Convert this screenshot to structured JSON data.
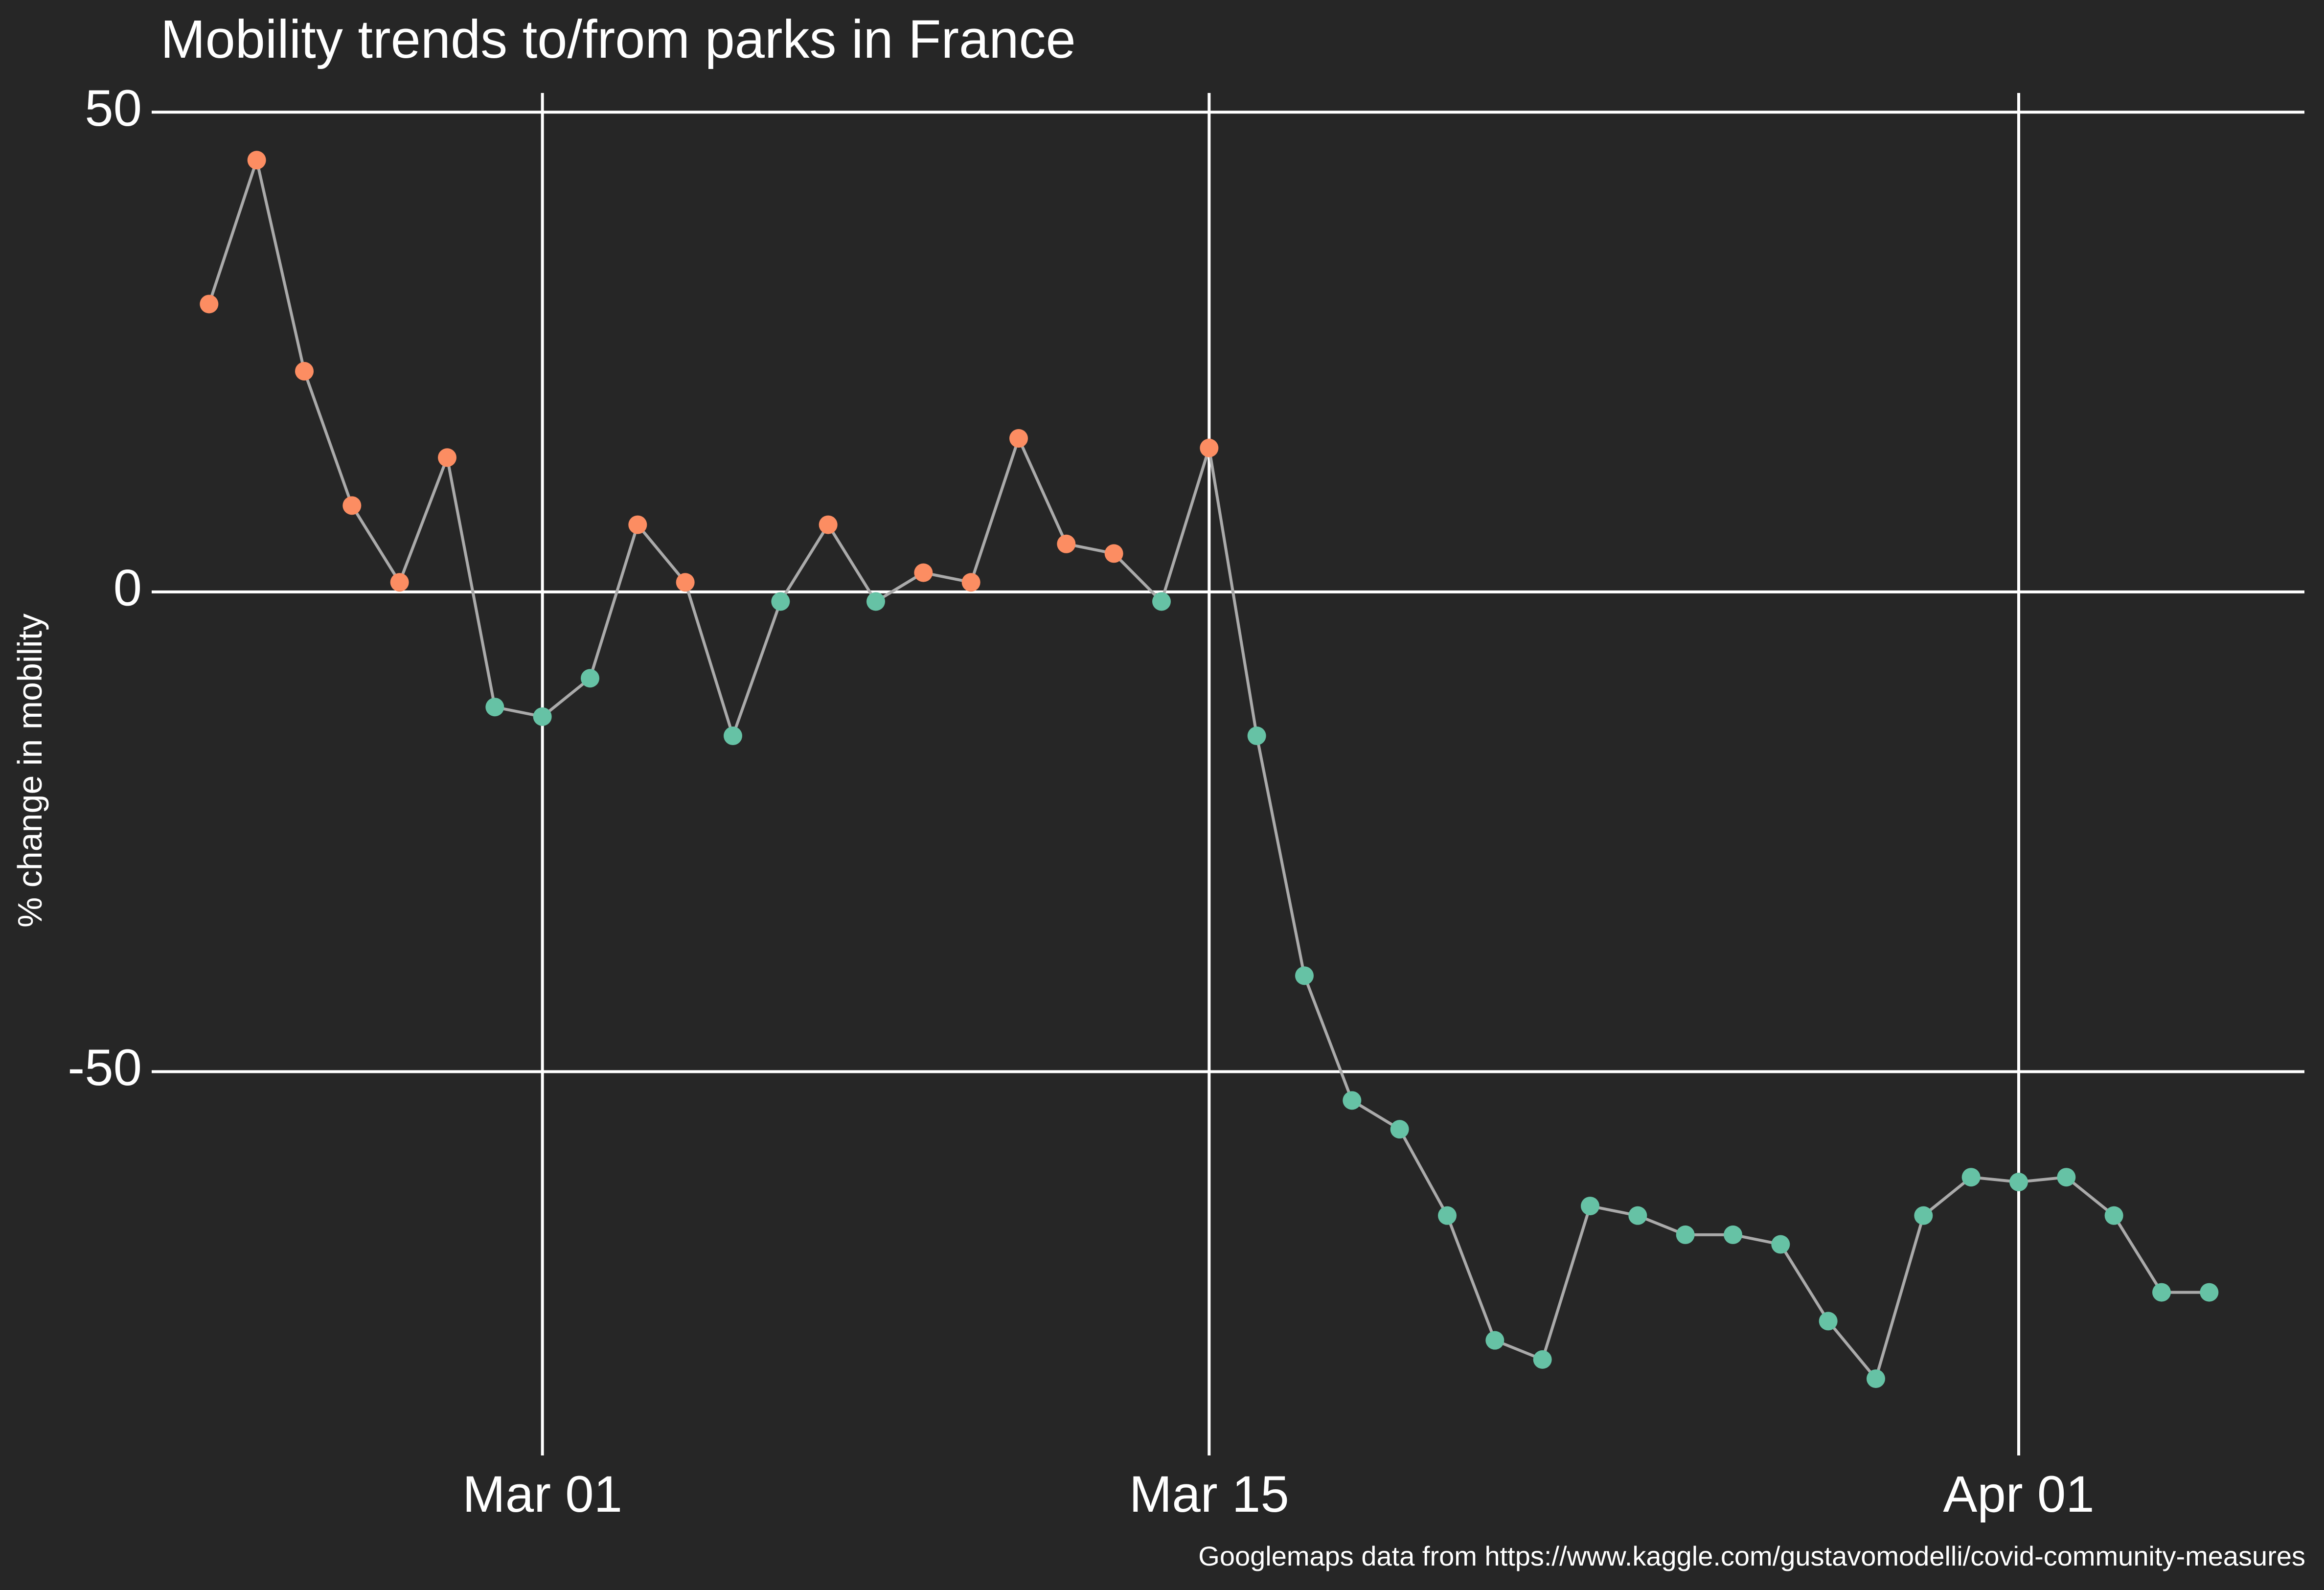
{
  "chart_data": {
    "type": "line",
    "title": "Mobility trends to/from parks in France",
    "ylabel": "% change in mobility",
    "xlabel": "",
    "caption": "Googlemaps data from https://www.kaggle.com/gustavomodelli/covid-community-measures",
    "ylim": [
      -90,
      52
    ],
    "xlim": [
      "2020-02-22",
      "2020-04-07"
    ],
    "yticks": [
      {
        "value": 50,
        "label": "50"
      },
      {
        "value": 0,
        "label": "0"
      },
      {
        "value": -50,
        "label": "-50"
      }
    ],
    "xticks": [
      {
        "date": "2020-03-01",
        "label": "Mar 01"
      },
      {
        "date": "2020-03-15",
        "label": "Mar 15"
      },
      {
        "date": "2020-04-01",
        "label": "Apr 01"
      }
    ],
    "grid": true,
    "colors": {
      "background": "#262626",
      "line": "#aaaaaa",
      "positive": "#fc8d62",
      "negative": "#66c2a5",
      "grid": "#ffffff",
      "text": "#ffffff"
    },
    "series": [
      {
        "x": [
          "2020-02-23",
          "2020-02-24",
          "2020-02-25",
          "2020-02-26",
          "2020-02-27",
          "2020-02-28",
          "2020-02-29",
          "2020-03-01",
          "2020-03-02",
          "2020-03-03",
          "2020-03-04",
          "2020-03-05",
          "2020-03-06",
          "2020-03-07",
          "2020-03-08",
          "2020-03-09",
          "2020-03-10",
          "2020-03-11",
          "2020-03-12",
          "2020-03-13",
          "2020-03-14",
          "2020-03-15",
          "2020-03-16",
          "2020-03-17",
          "2020-03-18",
          "2020-03-19",
          "2020-03-20",
          "2020-03-21",
          "2020-03-22",
          "2020-03-23",
          "2020-03-24",
          "2020-03-25",
          "2020-03-26",
          "2020-03-27",
          "2020-03-28",
          "2020-03-29",
          "2020-03-30",
          "2020-03-31",
          "2020-04-01",
          "2020-04-02",
          "2020-04-03",
          "2020-04-04",
          "2020-04-05"
        ],
        "values": [
          30,
          45,
          23,
          9,
          1,
          14,
          -12,
          -13,
          -9,
          7,
          1,
          -15,
          -1,
          7,
          -1,
          2,
          1,
          16,
          5,
          4,
          -1,
          15,
          -15,
          -40,
          -53,
          -56,
          -65,
          -78,
          -80,
          -64,
          -65,
          -67,
          -67,
          -68,
          -76,
          -82,
          -65,
          -61,
          -61.5,
          -61,
          -65,
          -73,
          -73
        ]
      }
    ]
  }
}
